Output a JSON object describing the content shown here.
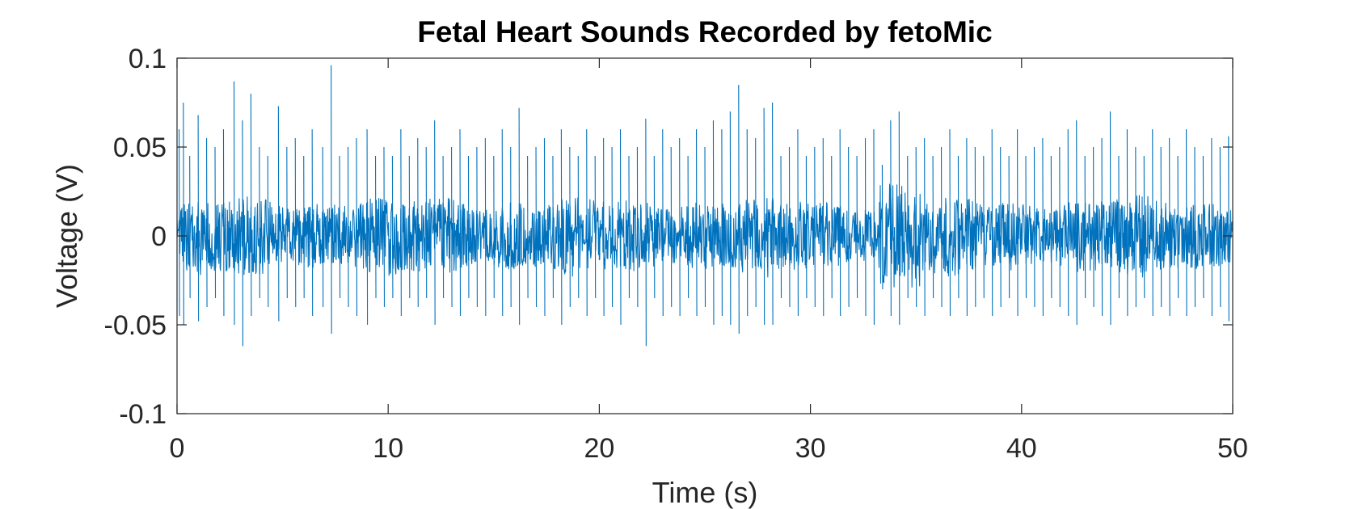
{
  "chart_data": {
    "type": "line",
    "title": "Fetal Heart Sounds Recorded by fetoMic",
    "xlabel": "Time (s)",
    "ylabel": "Voltage (V)",
    "xlim": [
      0,
      50
    ],
    "ylim": [
      -0.1,
      0.1
    ],
    "x_ticks": [
      0,
      10,
      20,
      30,
      40,
      50
    ],
    "x_tick_labels": [
      "0",
      "10",
      "20",
      "30",
      "40",
      "50"
    ],
    "y_ticks": [
      -0.1,
      -0.05,
      0,
      0.05,
      0.1
    ],
    "y_tick_labels": [
      "-0.1",
      "-0.05",
      "0",
      "0.05",
      "0.1"
    ],
    "grid": false,
    "box": true,
    "legend": "none",
    "colors": {
      "series": "#0072BD",
      "axes": "#262626",
      "background": "#ffffff"
    },
    "series": [
      {
        "color": "#0072BD",
        "noise_envelope_amplitude": 0.022,
        "spike_times_s": [
          0.1,
          0.3,
          0.6,
          1.0,
          1.4,
          1.8,
          2.2,
          2.7,
          3.1,
          3.5,
          3.9,
          4.3,
          4.8,
          5.2,
          5.6,
          6.0,
          6.4,
          6.9,
          7.3,
          7.7,
          8.1,
          8.5,
          9.0,
          9.4,
          9.8,
          10.2,
          10.6,
          11.0,
          11.4,
          11.8,
          12.2,
          12.6,
          13.0,
          13.4,
          13.8,
          14.2,
          14.6,
          15.0,
          15.4,
          15.8,
          16.2,
          16.6,
          17.0,
          17.4,
          17.8,
          18.2,
          18.6,
          19.0,
          19.4,
          19.8,
          20.2,
          20.6,
          21.0,
          21.4,
          21.8,
          22.2,
          22.6,
          23.0,
          23.4,
          23.8,
          24.2,
          24.6,
          25.0,
          25.4,
          25.8,
          26.2,
          26.6,
          27.0,
          27.4,
          27.8,
          28.2,
          28.6,
          29.0,
          29.4,
          29.8,
          30.2,
          30.6,
          31.0,
          31.4,
          31.8,
          32.2,
          32.6,
          33.0,
          33.4,
          33.8,
          34.2,
          34.6,
          35.0,
          35.4,
          35.8,
          36.2,
          36.6,
          37.0,
          37.4,
          37.8,
          38.2,
          38.6,
          39.0,
          39.4,
          39.8,
          40.2,
          40.6,
          41.0,
          41.4,
          41.8,
          42.2,
          42.6,
          43.0,
          43.4,
          43.8,
          44.2,
          44.6,
          45.0,
          45.4,
          45.8,
          46.2,
          46.6,
          47.0,
          47.4,
          47.8,
          48.2,
          48.6,
          49.0,
          49.4,
          49.8
        ],
        "spike_peaks_v": [
          0.06,
          0.075,
          0.045,
          0.068,
          0.055,
          0.05,
          0.06,
          0.087,
          0.065,
          0.08,
          0.05,
          0.045,
          0.073,
          0.05,
          0.055,
          0.045,
          0.06,
          0.05,
          0.096,
          0.045,
          0.05,
          0.055,
          0.06,
          0.045,
          0.05,
          0.045,
          0.06,
          0.045,
          0.055,
          0.05,
          0.065,
          0.045,
          0.05,
          0.06,
          0.045,
          0.05,
          0.055,
          0.045,
          0.06,
          0.05,
          0.072,
          0.045,
          0.05,
          0.055,
          0.045,
          0.06,
          0.05,
          0.045,
          0.06,
          0.045,
          0.055,
          0.05,
          0.06,
          0.045,
          0.05,
          0.066,
          0.045,
          0.06,
          0.05,
          0.055,
          0.045,
          0.06,
          0.05,
          0.065,
          0.06,
          0.07,
          0.085,
          0.06,
          0.055,
          0.072,
          0.075,
          0.045,
          0.05,
          0.06,
          0.045,
          0.05,
          0.055,
          0.045,
          0.06,
          0.05,
          0.045,
          0.055,
          0.06,
          0.04,
          0.065,
          0.07,
          0.045,
          0.05,
          0.055,
          0.045,
          0.05,
          0.06,
          0.045,
          0.055,
          0.05,
          0.045,
          0.06,
          0.05,
          0.045,
          0.06,
          0.045,
          0.05,
          0.055,
          0.045,
          0.05,
          0.06,
          0.065,
          0.045,
          0.05,
          0.055,
          0.07,
          0.045,
          0.06,
          0.05,
          0.045,
          0.06,
          0.05,
          0.055,
          0.045,
          0.06,
          0.05,
          0.045,
          0.055,
          0.05,
          0.056
        ],
        "spike_troughs_v": [
          -0.045,
          -0.05,
          -0.035,
          -0.048,
          -0.04,
          -0.035,
          -0.045,
          -0.05,
          -0.062,
          -0.045,
          -0.035,
          -0.04,
          -0.048,
          -0.035,
          -0.04,
          -0.035,
          -0.045,
          -0.04,
          -0.055,
          -0.035,
          -0.04,
          -0.045,
          -0.05,
          -0.035,
          -0.04,
          -0.035,
          -0.045,
          -0.035,
          -0.04,
          -0.035,
          -0.05,
          -0.035,
          -0.04,
          -0.045,
          -0.035,
          -0.04,
          -0.045,
          -0.035,
          -0.045,
          -0.04,
          -0.05,
          -0.035,
          -0.04,
          -0.045,
          -0.035,
          -0.05,
          -0.04,
          -0.035,
          -0.045,
          -0.035,
          -0.045,
          -0.04,
          -0.05,
          -0.035,
          -0.04,
          -0.062,
          -0.035,
          -0.045,
          -0.04,
          -0.045,
          -0.035,
          -0.045,
          -0.04,
          -0.05,
          -0.045,
          -0.05,
          -0.055,
          -0.045,
          -0.04,
          -0.05,
          -0.05,
          -0.035,
          -0.04,
          -0.045,
          -0.035,
          -0.04,
          -0.045,
          -0.035,
          -0.045,
          -0.04,
          -0.035,
          -0.045,
          -0.05,
          -0.03,
          -0.045,
          -0.05,
          -0.035,
          -0.04,
          -0.045,
          -0.035,
          -0.04,
          -0.045,
          -0.035,
          -0.045,
          -0.04,
          -0.035,
          -0.045,
          -0.04,
          -0.035,
          -0.045,
          -0.035,
          -0.04,
          -0.045,
          -0.035,
          -0.04,
          -0.045,
          -0.05,
          -0.035,
          -0.04,
          -0.045,
          -0.05,
          -0.035,
          -0.045,
          -0.04,
          -0.035,
          -0.045,
          -0.04,
          -0.045,
          -0.035,
          -0.045,
          -0.04,
          -0.035,
          -0.045,
          -0.04,
          -0.048
        ]
      }
    ]
  }
}
